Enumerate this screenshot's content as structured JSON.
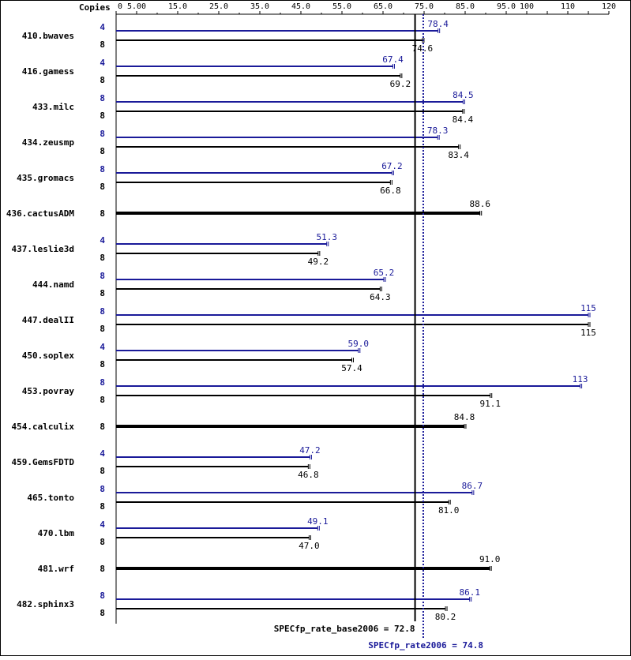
{
  "chart_data": {
    "type": "bar",
    "orientation": "horizontal",
    "copies_header": "Copies",
    "x_ticks": [
      {
        "value": 0,
        "label": "0"
      },
      {
        "value": 5,
        "label": "5.00"
      },
      {
        "value": 15,
        "label": "15.0"
      },
      {
        "value": 25,
        "label": "25.0"
      },
      {
        "value": 35,
        "label": "35.0"
      },
      {
        "value": 45,
        "label": "45.0"
      },
      {
        "value": 55,
        "label": "55.0"
      },
      {
        "value": 65,
        "label": "65.0"
      },
      {
        "value": 75,
        "label": "75.0"
      },
      {
        "value": 85,
        "label": "85.0"
      },
      {
        "value": 95,
        "label": "95.0"
      },
      {
        "value": 100,
        "label": "100"
      },
      {
        "value": 110,
        "label": "110"
      },
      {
        "value": 120,
        "label": "120"
      }
    ],
    "xlim": [
      0,
      120
    ],
    "series": [
      {
        "name": "peak",
        "color": "#1a1a99"
      },
      {
        "name": "base",
        "color": "#000000"
      }
    ],
    "benchmarks": [
      {
        "name": "410.bwaves",
        "peak_copies": "4",
        "peak": 78.4,
        "peak_label": "78.4",
        "base_copies": "8",
        "base": 74.6,
        "base_label": "74.6"
      },
      {
        "name": "416.gamess",
        "peak_copies": "4",
        "peak": 67.4,
        "peak_label": "67.4",
        "base_copies": "8",
        "base": 69.2,
        "base_label": "69.2"
      },
      {
        "name": "433.milc",
        "peak_copies": "8",
        "peak": 84.5,
        "peak_label": "84.5",
        "base_copies": "8",
        "base": 84.4,
        "base_label": "84.4"
      },
      {
        "name": "434.zeusmp",
        "peak_copies": "8",
        "peak": 78.3,
        "peak_label": "78.3",
        "base_copies": "8",
        "base": 83.4,
        "base_label": "83.4"
      },
      {
        "name": "435.gromacs",
        "peak_copies": "8",
        "peak": 67.2,
        "peak_label": "67.2",
        "base_copies": "8",
        "base": 66.8,
        "base_label": "66.8"
      },
      {
        "name": "436.cactusADM",
        "peak_copies": null,
        "peak": null,
        "peak_label": null,
        "base_copies": "8",
        "base": 88.6,
        "base_label": "88.6"
      },
      {
        "name": "437.leslie3d",
        "peak_copies": "4",
        "peak": 51.3,
        "peak_label": "51.3",
        "base_copies": "8",
        "base": 49.2,
        "base_label": "49.2"
      },
      {
        "name": "444.namd",
        "peak_copies": "8",
        "peak": 65.2,
        "peak_label": "65.2",
        "base_copies": "8",
        "base": 64.3,
        "base_label": "64.3"
      },
      {
        "name": "447.dealII",
        "peak_copies": "8",
        "peak": 115,
        "peak_label": "115",
        "base_copies": "8",
        "base": 115,
        "base_label": "115"
      },
      {
        "name": "450.soplex",
        "peak_copies": "4",
        "peak": 59.0,
        "peak_label": "59.0",
        "base_copies": "8",
        "base": 57.4,
        "base_label": "57.4"
      },
      {
        "name": "453.povray",
        "peak_copies": "8",
        "peak": 113,
        "peak_label": "113",
        "base_copies": "8",
        "base": 91.1,
        "base_label": "91.1"
      },
      {
        "name": "454.calculix",
        "peak_copies": null,
        "peak": null,
        "peak_label": null,
        "base_copies": "8",
        "base": 84.8,
        "base_label": "84.8"
      },
      {
        "name": "459.GemsFDTD",
        "peak_copies": "4",
        "peak": 47.2,
        "peak_label": "47.2",
        "base_copies": "8",
        "base": 46.8,
        "base_label": "46.8"
      },
      {
        "name": "465.tonto",
        "peak_copies": "8",
        "peak": 86.7,
        "peak_label": "86.7",
        "base_copies": "8",
        "base": 81.0,
        "base_label": "81.0"
      },
      {
        "name": "470.lbm",
        "peak_copies": "4",
        "peak": 49.1,
        "peak_label": "49.1",
        "base_copies": "8",
        "base": 47.0,
        "base_label": "47.0"
      },
      {
        "name": "481.wrf",
        "peak_copies": null,
        "peak": null,
        "peak_label": null,
        "base_copies": "8",
        "base": 91.0,
        "base_label": "91.0"
      },
      {
        "name": "482.sphinx3",
        "peak_copies": "8",
        "peak": 86.1,
        "peak_label": "86.1",
        "base_copies": "8",
        "base": 80.2,
        "base_label": "80.2"
      }
    ],
    "summary": {
      "base": {
        "label": "SPECfp_rate_base2006 = 72.8",
        "value": 72.8
      },
      "peak": {
        "label": "SPECfp_rate2006 = 74.8",
        "value": 74.8
      }
    },
    "grid": false,
    "legend": "none"
  }
}
